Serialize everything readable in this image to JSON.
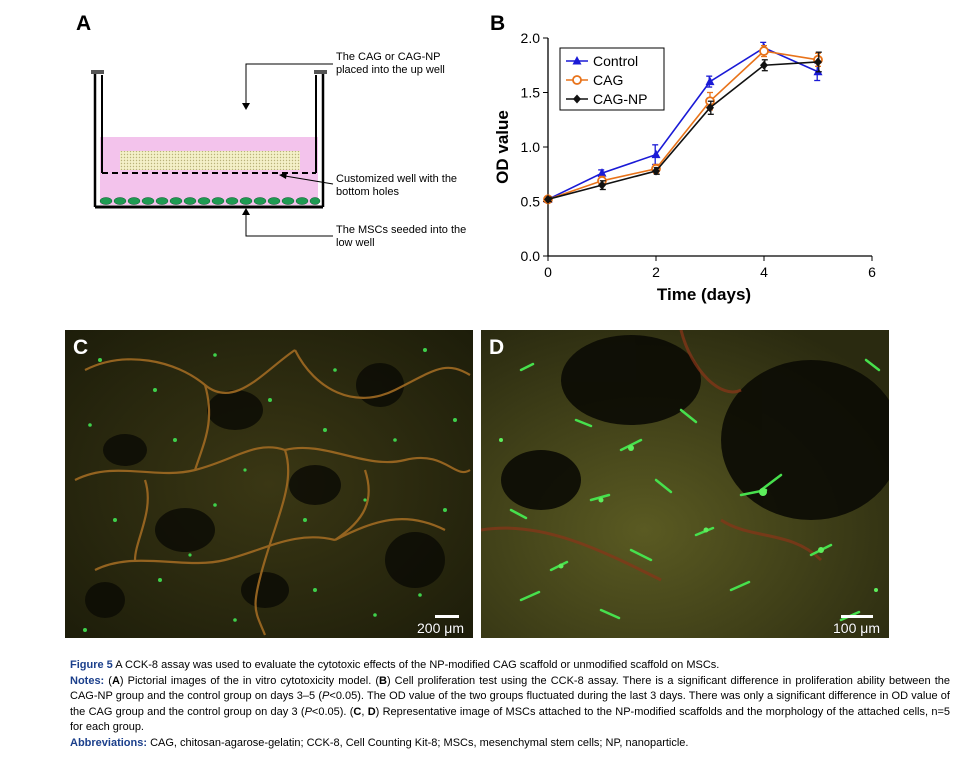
{
  "panel_a": {
    "letter": "A",
    "annotations": {
      "top": "The CAG or CAG-NP\nplaced into the up well",
      "middle": "Customized well with the\nbottom holes",
      "bottom": "The MSCs seeded into the\nlow well"
    }
  },
  "panel_b": {
    "letter": "B"
  },
  "panel_c": {
    "letter": "C",
    "scale_bar": "200 μm"
  },
  "panel_d": {
    "letter": "D",
    "scale_bar": "100 μm"
  },
  "chart_data": {
    "type": "line",
    "title": "",
    "xlabel": "Time (days)",
    "ylabel": "OD value",
    "xlim": [
      0,
      6
    ],
    "ylim": [
      0.0,
      2.0
    ],
    "xticks": [
      0,
      2,
      4,
      6
    ],
    "yticks": [
      0.0,
      0.5,
      1.0,
      1.5,
      2.0
    ],
    "ytick_labels": [
      "0.0",
      "0.5",
      "1.0",
      "1.5",
      "2.0"
    ],
    "grid": false,
    "legend_position": "top-left",
    "x": [
      0,
      1,
      2,
      3,
      4,
      5
    ],
    "series": [
      {
        "name": "Control",
        "color": "#1a1ad6",
        "marker": "triangle",
        "values": [
          0.52,
          0.76,
          0.93,
          1.6,
          1.91,
          1.69
        ],
        "errors": [
          0.02,
          0.03,
          0.09,
          0.05,
          0.05,
          0.08
        ]
      },
      {
        "name": "CAG",
        "color": "#e8731a",
        "marker": "open-circle",
        "values": [
          0.52,
          0.69,
          0.8,
          1.42,
          1.88,
          1.8
        ],
        "errors": [
          0.02,
          0.04,
          0.04,
          0.08,
          0.05,
          0.06
        ]
      },
      {
        "name": "CAG-NP",
        "color": "#111111",
        "marker": "diamond",
        "values": [
          0.52,
          0.65,
          0.78,
          1.36,
          1.75,
          1.78
        ],
        "errors": [
          0.02,
          0.04,
          0.03,
          0.06,
          0.05,
          0.09
        ]
      }
    ]
  },
  "caption": {
    "figure_label": "Figure 5",
    "figure_text": " A CCK-8 assay was used to evaluate the cytotoxic effects of the NP-modified CAG scaffold or unmodified scaffold on MSCs.",
    "notes_label": "Notes:",
    "notes_1": " (",
    "notes_A": "A",
    "notes_2": ") Pictorial images of the in vitro cytotoxicity model. (",
    "notes_B": "B",
    "notes_3": ") Cell proliferation test using the CCK-8 assay. There is a significant difference in proliferation ability between the CAG-NP group and the control group on days 3–5 (",
    "notes_P1": "P",
    "notes_4": "<0.05). The OD value of the two groups fluctuated during the last 3 days. There was only a significant difference in OD value of the CAG group and the control group on day 3 (",
    "notes_P2": "P",
    "notes_5": "<0.05). (",
    "notes_C": "C",
    "notes_6": ", ",
    "notes_D": "D",
    "notes_7": ") Representative image of MSCs attached to the NP-modified scaffolds and the morphology of the attached cells, n=5 for each group.",
    "abbr_label": "Abbreviations:",
    "abbr_text": " CAG, chitosan-agarose-gelatin; CCK-8, Cell Counting Kit-8; MSCs, mesenchymal stem cells; NP, nanoparticle."
  }
}
